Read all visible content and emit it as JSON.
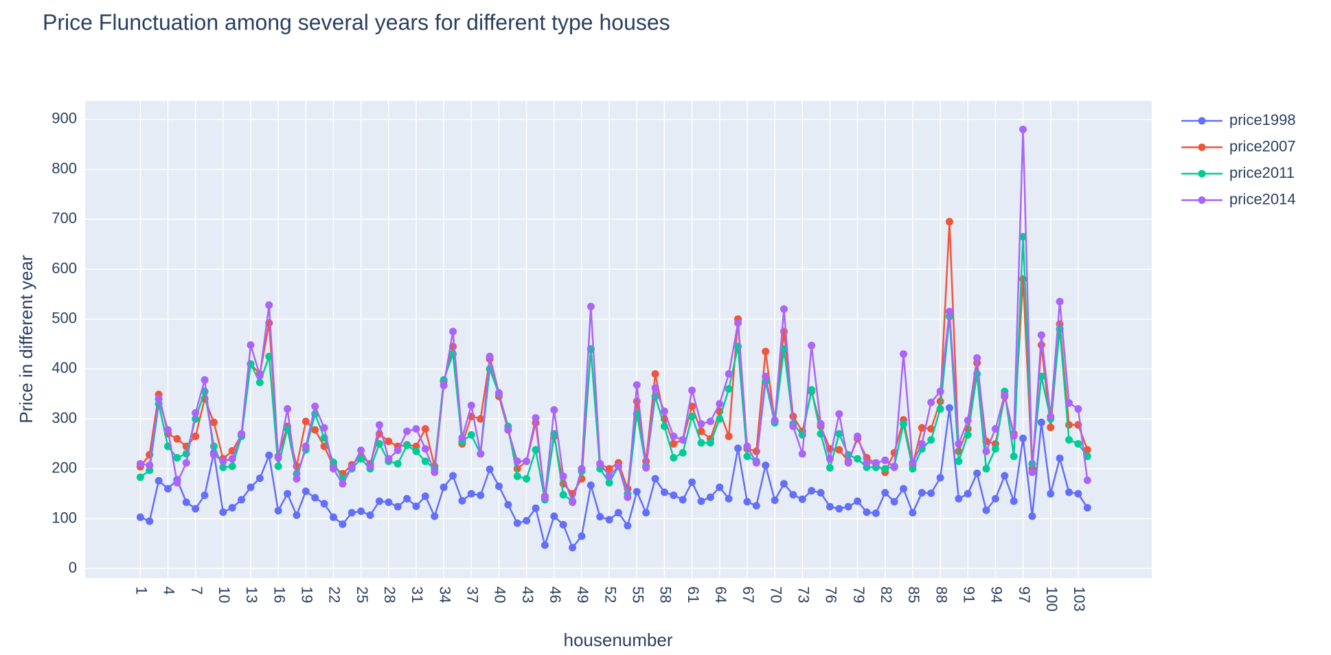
{
  "chart_data": {
    "type": "line",
    "title": "Price Flunctuation among several years for different type houses",
    "x_label": "housenumber",
    "y_label": "Price in different year",
    "x": [
      1,
      2,
      3,
      4,
      5,
      6,
      7,
      8,
      9,
      10,
      11,
      12,
      13,
      14,
      15,
      16,
      17,
      18,
      19,
      20,
      21,
      22,
      23,
      24,
      25,
      26,
      27,
      28,
      29,
      30,
      31,
      32,
      33,
      34,
      35,
      36,
      37,
      38,
      39,
      40,
      41,
      42,
      43,
      44,
      45,
      46,
      47,
      48,
      49,
      50,
      51,
      52,
      53,
      54,
      55,
      56,
      57,
      58,
      59,
      60,
      61,
      62,
      63,
      64,
      65,
      66,
      67,
      68,
      69,
      70,
      71,
      72,
      73,
      74,
      75,
      76,
      77,
      78,
      79,
      80,
      81,
      82,
      83,
      84,
      85,
      86,
      87,
      88,
      89,
      90,
      91,
      92,
      93,
      94,
      95,
      96,
      97,
      98,
      99,
      100,
      101,
      102,
      103,
      104
    ],
    "xlim": [
      -5,
      111
    ],
    "xticks": [
      1,
      4,
      7,
      10,
      13,
      16,
      19,
      22,
      25,
      28,
      31,
      34,
      37,
      40,
      43,
      46,
      49,
      52,
      55,
      58,
      61,
      64,
      67,
      70,
      73,
      76,
      79,
      82,
      85,
      88,
      91,
      94,
      97,
      100,
      103
    ],
    "ylim": [
      -19,
      937
    ],
    "yticks": [
      0,
      100,
      200,
      300,
      400,
      500,
      600,
      700,
      800,
      900
    ],
    "grid": true,
    "legend": "right",
    "series": [
      {
        "name": "price1998",
        "color": "#636efa",
        "values": [
          103,
          95,
          176,
          160,
          178,
          133,
          120,
          147,
          232,
          113,
          122,
          138,
          163,
          181,
          227,
          116,
          150,
          107,
          155,
          142,
          130,
          103,
          89,
          112,
          115,
          107,
          135,
          133,
          124,
          140,
          125,
          145,
          105,
          163,
          186,
          136,
          150,
          147,
          199,
          165,
          128,
          91,
          96,
          121,
          47,
          105,
          88,
          42,
          65,
          167,
          104,
          98,
          112,
          86,
          154,
          112,
          180,
          153,
          147,
          138,
          173,
          135,
          143,
          163,
          140,
          241,
          134,
          126,
          207,
          137,
          170,
          148,
          139,
          156,
          152,
          124,
          120,
          124,
          135,
          113,
          111,
          152,
          134,
          160,
          112,
          152,
          151,
          182,
          322,
          140,
          150,
          191,
          117,
          140,
          186,
          135,
          261,
          105,
          293,
          150,
          221,
          153,
          150,
          122
        ]
      },
      {
        "name": "price2007",
        "color": "#EF553B",
        "values": [
          204,
          228,
          349,
          270,
          260,
          245,
          265,
          340,
          293,
          220,
          236,
          268,
          410,
          390,
          492,
          225,
          285,
          205,
          295,
          278,
          245,
          205,
          190,
          208,
          225,
          210,
          270,
          255,
          245,
          248,
          245,
          280,
          205,
          375,
          445,
          250,
          305,
          300,
          420,
          345,
          278,
          200,
          215,
          292,
          145,
          265,
          170,
          150,
          180,
          440,
          210,
          200,
          212,
          160,
          335,
          215,
          390,
          300,
          250,
          258,
          325,
          275,
          260,
          315,
          265,
          500,
          240,
          235,
          435,
          295,
          475,
          305,
          275,
          355,
          285,
          240,
          238,
          215,
          260,
          222,
          210,
          193,
          232,
          298,
          208,
          282,
          280,
          335,
          695,
          235,
          280,
          412,
          255,
          250,
          345,
          270,
          580,
          200,
          448,
          283,
          490,
          288,
          288,
          238
        ]
      },
      {
        "name": "price2011",
        "color": "#00cc96",
        "values": [
          183,
          197,
          330,
          245,
          222,
          230,
          300,
          355,
          245,
          203,
          205,
          265,
          410,
          373,
          425,
          205,
          280,
          190,
          238,
          310,
          262,
          213,
          180,
          200,
          220,
          200,
          250,
          215,
          210,
          247,
          235,
          215,
          200,
          378,
          430,
          255,
          268,
          230,
          400,
          350,
          285,
          185,
          180,
          238,
          138,
          270,
          148,
          135,
          195,
          440,
          200,
          172,
          205,
          150,
          310,
          205,
          345,
          285,
          222,
          232,
          305,
          252,
          252,
          300,
          360,
          445,
          225,
          215,
          375,
          292,
          440,
          290,
          268,
          358,
          270,
          202,
          270,
          228,
          220,
          203,
          203,
          200,
          205,
          290,
          200,
          240,
          258,
          320,
          505,
          215,
          268,
          390,
          200,
          240,
          355,
          225,
          665,
          210,
          385,
          300,
          480,
          258,
          250,
          225
        ]
      },
      {
        "name": "price2014",
        "color": "#ab63fa",
        "values": [
          210,
          207,
          340,
          278,
          172,
          212,
          312,
          378,
          228,
          215,
          220,
          270,
          448,
          387,
          528,
          222,
          320,
          180,
          245,
          325,
          282,
          200,
          170,
          203,
          237,
          205,
          288,
          220,
          237,
          275,
          280,
          240,
          193,
          367,
          475,
          262,
          327,
          230,
          425,
          352,
          278,
          215,
          215,
          302,
          142,
          318,
          185,
          133,
          200,
          525,
          210,
          186,
          205,
          143,
          368,
          202,
          362,
          315,
          265,
          258,
          357,
          290,
          295,
          330,
          390,
          492,
          245,
          212,
          385,
          297,
          520,
          285,
          230,
          447,
          290,
          220,
          310,
          212,
          265,
          212,
          212,
          217,
          203,
          430,
          212,
          250,
          333,
          355,
          515,
          250,
          297,
          422,
          235,
          280,
          348,
          266,
          880,
          193,
          468,
          305,
          535,
          332,
          320,
          177
        ]
      }
    ]
  }
}
